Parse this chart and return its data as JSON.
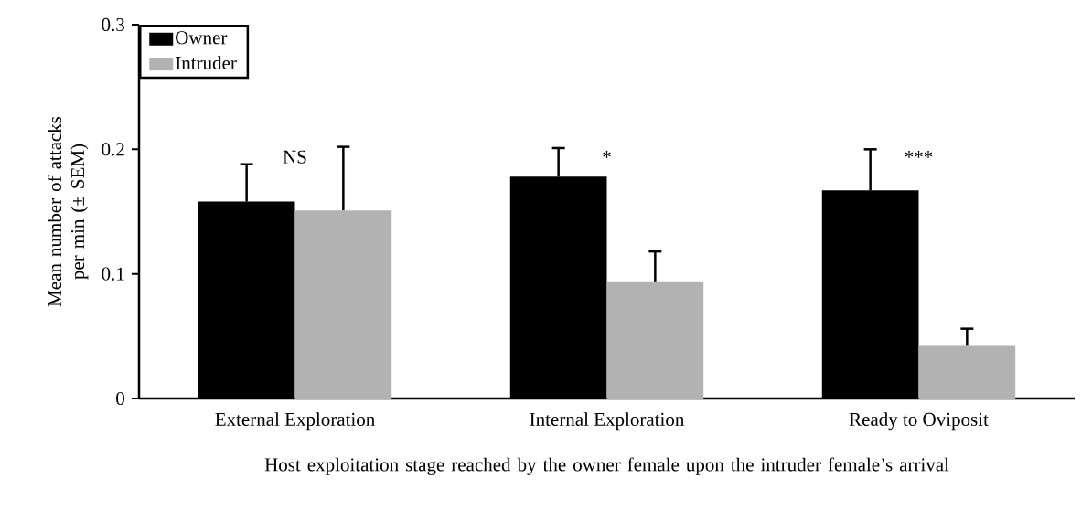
{
  "chart_data": {
    "type": "bar",
    "xlabel": "Host exploitation stage reached by the owner female upon the intruder female’s arrival",
    "ylabel": "Mean number of attacks per min (± SEM)",
    "categories": [
      "External Exploration",
      "Internal Exploration",
      "Ready to Oviposit"
    ],
    "series": [
      {
        "name": "Owner",
        "color": "#000000",
        "values": [
          0.158,
          0.178,
          0.167
        ],
        "errors": [
          [
            0.158,
            0.188
          ],
          [
            0.178,
            0.201
          ],
          [
            0.167,
            0.2
          ]
        ]
      },
      {
        "name": "Intruder",
        "color": "#b2b2b2",
        "values": [
          0.151,
          0.094,
          0.043
        ],
        "errors": [
          [
            0.151,
            0.202
          ],
          [
            0.094,
            0.118
          ],
          [
            0.043,
            0.056
          ]
        ]
      }
    ],
    "ylim": [
      0,
      0.3
    ],
    "yticks": [
      0,
      0.1,
      0.2,
      0.3
    ],
    "legend": "top left",
    "annotations": [
      "NS",
      "*",
      "***"
    ]
  }
}
